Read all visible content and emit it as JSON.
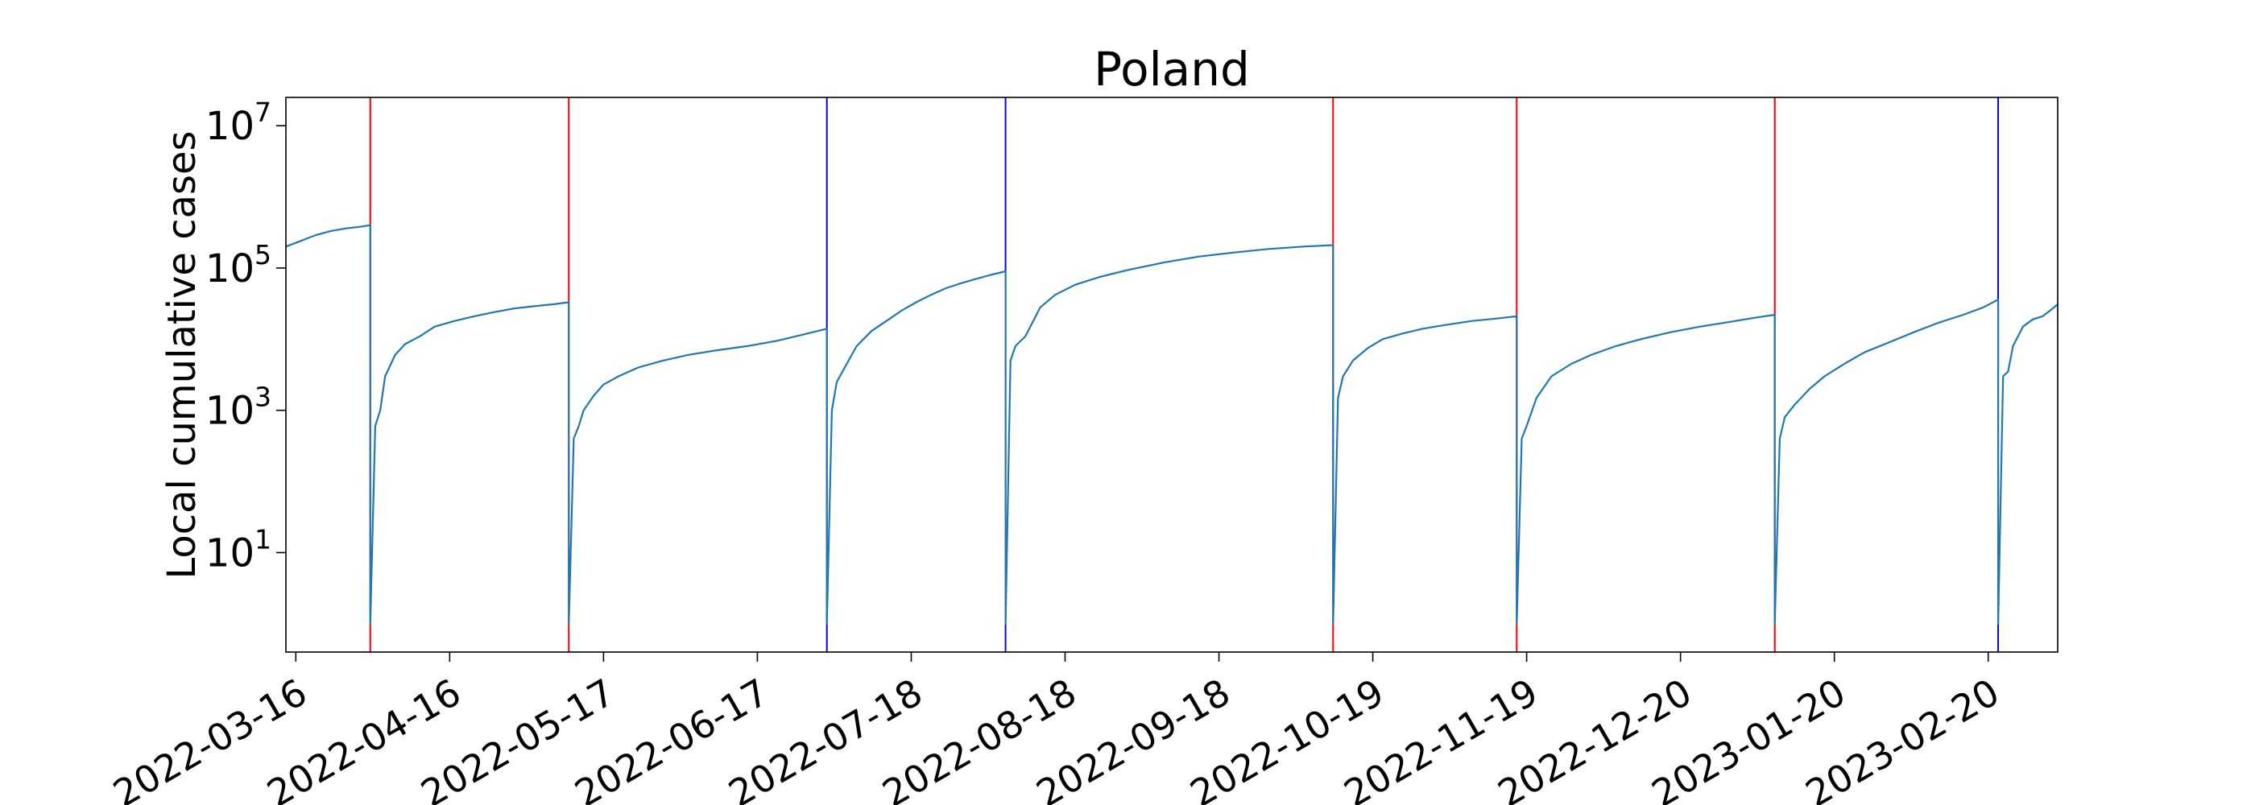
{
  "chart_data": {
    "type": "line",
    "title": "Poland",
    "xlabel": "",
    "ylabel": "Local cumulative cases",
    "x_range": [
      "2022-03-14",
      "2023-03-06"
    ],
    "y_scale": "log",
    "ylim": [
      0.4,
      25000000
    ],
    "grid": false,
    "x_ticks": [
      "2022-03-16",
      "2022-04-16",
      "2022-05-17",
      "2022-06-17",
      "2022-07-18",
      "2022-08-18",
      "2022-09-18",
      "2022-10-19",
      "2022-11-19",
      "2022-12-20",
      "2023-01-20",
      "2023-02-20"
    ],
    "y_ticks": [
      {
        "base": "10",
        "exp": "1",
        "value": 10
      },
      {
        "base": "10",
        "exp": "3",
        "value": 1000
      },
      {
        "base": "10",
        "exp": "5",
        "value": 100000
      },
      {
        "base": "10",
        "exp": "7",
        "value": 10000000
      }
    ],
    "vertical_lines": [
      {
        "date": "2022-03-31",
        "color": "#ff0000"
      },
      {
        "date": "2022-05-10",
        "color": "#ff0000"
      },
      {
        "date": "2022-07-01",
        "color": "#0000ff"
      },
      {
        "date": "2022-08-06",
        "color": "#0000ff"
      },
      {
        "date": "2022-10-11",
        "color": "#ff0000"
      },
      {
        "date": "2022-11-17",
        "color": "#ff0000"
      },
      {
        "date": "2023-01-08",
        "color": "#ff0000"
      },
      {
        "date": "2023-02-22",
        "color": "#0000ff"
      }
    ],
    "series": [
      {
        "color": "#1f77b4",
        "segments": [
          {
            "x": [
              "2022-03-14",
              "2022-03-17",
              "2022-03-20",
              "2022-03-23",
              "2022-03-26",
              "2022-03-29",
              "2022-03-31"
            ],
            "y": [
              200000,
              240000,
              290000,
              330000,
              360000,
              380000,
              400000
            ]
          },
          {
            "x": [
              "2022-03-31",
              "2022-04-01",
              "2022-04-02",
              "2022-04-03",
              "2022-04-05",
              "2022-04-07",
              "2022-04-10",
              "2022-04-13",
              "2022-04-17",
              "2022-04-21",
              "2022-04-25",
              "2022-04-29",
              "2022-05-03",
              "2022-05-07",
              "2022-05-10"
            ],
            "y": [
              1,
              600,
              1000,
              3000,
              6000,
              8500,
              11000,
              15000,
              18000,
              21000,
              24000,
              27000,
              29000,
              31000,
              33000
            ]
          },
          {
            "x": [
              "2022-05-10",
              "2022-05-11",
              "2022-05-12",
              "2022-05-13",
              "2022-05-15",
              "2022-05-17",
              "2022-05-20",
              "2022-05-24",
              "2022-05-29",
              "2022-06-03",
              "2022-06-09",
              "2022-06-15",
              "2022-06-21",
              "2022-06-26",
              "2022-07-01"
            ],
            "y": [
              1,
              400,
              600,
              1000,
              1600,
              2300,
              3000,
              4000,
              5000,
              6000,
              7000,
              8000,
              9500,
              11500,
              14000
            ]
          },
          {
            "x": [
              "2022-07-01",
              "2022-07-02",
              "2022-07-03",
              "2022-07-05",
              "2022-07-07",
              "2022-07-10",
              "2022-07-13",
              "2022-07-16",
              "2022-07-19",
              "2022-07-22",
              "2022-07-25",
              "2022-07-28",
              "2022-07-31",
              "2022-08-03",
              "2022-08-06"
            ],
            "y": [
              1,
              1000,
              2500,
              4500,
              8000,
              13000,
              18000,
              25000,
              33000,
              42000,
              52000,
              61000,
              70000,
              80000,
              90000
            ]
          },
          {
            "x": [
              "2022-08-06",
              "2022-08-07",
              "2022-08-08",
              "2022-08-10",
              "2022-08-13",
              "2022-08-16",
              "2022-08-20",
              "2022-08-25",
              "2022-08-31",
              "2022-09-07",
              "2022-09-14",
              "2022-09-21",
              "2022-09-28",
              "2022-10-05",
              "2022-10-11"
            ],
            "y": [
              1,
              5000,
              8000,
              11000,
              28000,
              42000,
              58000,
              75000,
              95000,
              120000,
              145000,
              165000,
              185000,
              200000,
              210000
            ]
          },
          {
            "x": [
              "2022-10-11",
              "2022-10-12",
              "2022-10-13",
              "2022-10-15",
              "2022-10-18",
              "2022-10-21",
              "2022-10-25",
              "2022-10-29",
              "2022-11-03",
              "2022-11-08",
              "2022-11-13",
              "2022-11-17"
            ],
            "y": [
              1,
              1500,
              3000,
              5000,
              7500,
              10000,
              12000,
              14000,
              16000,
              18000,
              19500,
              21000
            ]
          },
          {
            "x": [
              "2022-11-17",
              "2022-11-18",
              "2022-11-19",
              "2022-11-21",
              "2022-11-24",
              "2022-11-28",
              "2022-12-02",
              "2022-12-07",
              "2022-12-12",
              "2022-12-18",
              "2022-12-24",
              "2022-12-30",
              "2023-01-04",
              "2023-01-08"
            ],
            "y": [
              1,
              400,
              600,
              1500,
              3000,
              4500,
              6000,
              8000,
              10000,
              12500,
              15000,
              17500,
              20000,
              22000
            ]
          },
          {
            "x": [
              "2023-01-08",
              "2023-01-09",
              "2023-01-10",
              "2023-01-12",
              "2023-01-15",
              "2023-01-18",
              "2023-01-22",
              "2023-01-26",
              "2023-01-31",
              "2023-02-05",
              "2023-02-10",
              "2023-02-15",
              "2023-02-19",
              "2023-02-22"
            ],
            "y": [
              1,
              400,
              800,
              1200,
              2000,
              3000,
              4500,
              6500,
              9000,
              12500,
              17000,
              22000,
              28000,
              36000
            ]
          },
          {
            "x": [
              "2023-02-22",
              "2023-02-23",
              "2023-02-24",
              "2023-02-25",
              "2023-02-27",
              "2023-03-01",
              "2023-03-03",
              "2023-03-05",
              "2023-03-06"
            ],
            "y": [
              1,
              3000,
              3500,
              8000,
              15000,
              19000,
              21000,
              27000,
              31000
            ]
          }
        ]
      }
    ]
  }
}
